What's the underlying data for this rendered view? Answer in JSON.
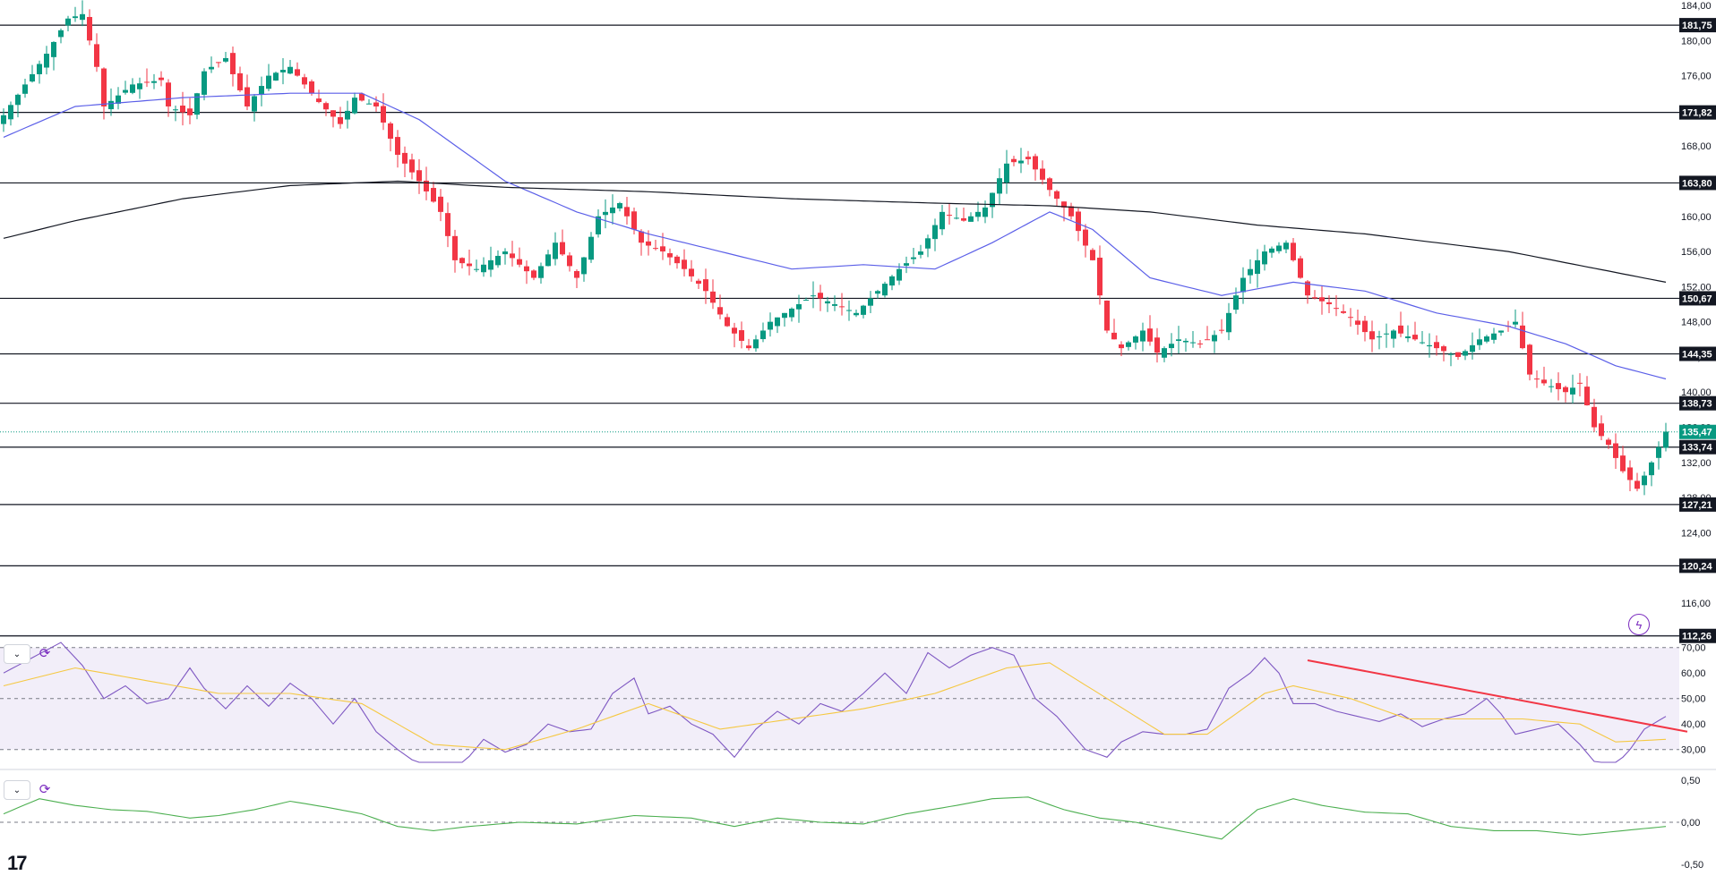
{
  "colors": {
    "up": "#089981",
    "down": "#f23645",
    "ma_fast": "#5b5fe8",
    "ma_slow": "#131722",
    "level": "#131722",
    "current_price": "#089981",
    "rsi": "#7e57c2",
    "rsi_ma": "#f5c842",
    "rsi_band": "#ede7f6",
    "trend": "#f23645",
    "osc": "#4caf50"
  },
  "icons": {
    "collapse": "chevron-down-icon",
    "refresh": "refresh-icon",
    "flash": "lightning-icon",
    "logo": "tradingview-logo"
  },
  "price_axis": {
    "ticks": [
      "184,00",
      "180,00",
      "176,00",
      "172,00",
      "168,00",
      "164,00",
      "160,00",
      "156,00",
      "152,00",
      "148,00",
      "144,00",
      "140,00",
      "136,00",
      "132,00",
      "128,00",
      "124,00",
      "120,00",
      "116,00"
    ]
  },
  "levels": [
    {
      "value": 181.75,
      "label": "181,75"
    },
    {
      "value": 171.82,
      "label": "171,82"
    },
    {
      "value": 163.8,
      "label": "163,80"
    },
    {
      "value": 150.67,
      "label": "150,67"
    },
    {
      "value": 144.35,
      "label": "144,35"
    },
    {
      "value": 138.73,
      "label": "138,73"
    },
    {
      "value": 133.74,
      "label": "133,74"
    },
    {
      "value": 127.21,
      "label": "127,21"
    },
    {
      "value": 120.24,
      "label": "120,24"
    },
    {
      "value": 112.26,
      "label": "112,26"
    }
  ],
  "current_price": {
    "value": 135.47,
    "label": "135,47"
  },
  "rsi_axis": {
    "ticks": [
      "70,00",
      "60,00",
      "50,00",
      "40,00",
      "30,00"
    ]
  },
  "osc_axis": {
    "ticks": [
      "0,50",
      "0,00",
      "-0,50"
    ]
  },
  "chart_data": [
    {
      "type": "candlestick",
      "title": "",
      "ylim": [
        111.5,
        184.0
      ],
      "candles_count": 233,
      "close_anchors": [
        [
          0,
          171.5
        ],
        [
          3,
          175
        ],
        [
          6,
          178.5
        ],
        [
          9,
          182.5
        ],
        [
          11,
          183
        ],
        [
          13,
          177
        ],
        [
          14,
          172.5
        ],
        [
          18,
          175
        ],
        [
          22,
          175.5
        ],
        [
          23,
          172.5
        ],
        [
          26,
          171.5
        ],
        [
          28,
          176.5
        ],
        [
          31,
          178
        ],
        [
          34,
          172.5
        ],
        [
          37,
          176
        ],
        [
          40,
          177
        ],
        [
          44,
          173
        ],
        [
          47,
          170.5
        ],
        [
          49,
          173.5
        ],
        [
          52,
          172.5
        ],
        [
          55,
          167
        ],
        [
          58,
          164
        ],
        [
          61,
          160.5
        ],
        [
          63,
          155
        ],
        [
          66,
          154
        ],
        [
          70,
          156
        ],
        [
          74,
          153
        ],
        [
          77,
          157
        ],
        [
          80,
          153
        ],
        [
          83,
          160
        ],
        [
          86,
          161.5
        ],
        [
          89,
          157
        ],
        [
          92,
          156
        ],
        [
          95,
          154
        ],
        [
          98,
          151.5
        ],
        [
          101,
          147.5
        ],
        [
          104,
          145
        ],
        [
          107,
          148
        ],
        [
          110,
          149.5
        ],
        [
          113,
          151
        ],
        [
          116,
          150
        ],
        [
          119,
          149
        ],
        [
          122,
          151.5
        ],
        [
          125,
          154
        ],
        [
          128,
          156
        ],
        [
          131,
          160.5
        ],
        [
          134,
          159.5
        ],
        [
          137,
          161
        ],
        [
          140,
          166
        ],
        [
          143,
          166.5
        ],
        [
          146,
          163
        ],
        [
          149,
          160
        ],
        [
          152,
          155
        ],
        [
          154,
          147
        ],
        [
          156,
          145
        ],
        [
          159,
          147
        ],
        [
          161,
          144.5
        ],
        [
          164,
          146
        ],
        [
          167,
          145.5
        ],
        [
          170,
          147
        ],
        [
          173,
          153
        ],
        [
          176,
          156
        ],
        [
          179,
          157
        ],
        [
          182,
          151
        ],
        [
          185,
          150
        ],
        [
          188,
          148.5
        ],
        [
          191,
          146
        ],
        [
          194,
          147
        ],
        [
          197,
          146
        ],
        [
          200,
          145
        ],
        [
          203,
          144
        ],
        [
          206,
          146
        ],
        [
          209,
          147
        ],
        [
          211,
          148
        ],
        [
          213,
          142
        ],
        [
          215,
          141
        ],
        [
          218,
          140
        ],
        [
          220,
          141
        ],
        [
          222,
          136
        ],
        [
          224,
          134
        ],
        [
          226,
          131
        ],
        [
          228,
          129
        ],
        [
          230,
          132
        ],
        [
          232,
          135.5
        ]
      ],
      "series": [
        {
          "name": "",
          "kind": "ma_fast",
          "points": [
            [
              0,
              169
            ],
            [
              10,
              172.5
            ],
            [
              25,
              173.5
            ],
            [
              40,
              174
            ],
            [
              50,
              174
            ],
            [
              58,
              171
            ],
            [
              70,
              164
            ],
            [
              80,
              160.5
            ],
            [
              90,
              158
            ],
            [
              100,
              156
            ],
            [
              110,
              154
            ],
            [
              120,
              154.5
            ],
            [
              130,
              154
            ],
            [
              138,
              157
            ],
            [
              146,
              160.5
            ],
            [
              152,
              158.5
            ],
            [
              160,
              153
            ],
            [
              170,
              151
            ],
            [
              180,
              152.5
            ],
            [
              190,
              151.5
            ],
            [
              200,
              149
            ],
            [
              210,
              147.5
            ],
            [
              218,
              145.5
            ],
            [
              225,
              143
            ],
            [
              232,
              141.5
            ]
          ]
        },
        {
          "name": "",
          "kind": "ma_slow",
          "points": [
            [
              0,
              157.5
            ],
            [
              10,
              159.5
            ],
            [
              25,
              162
            ],
            [
              40,
              163.5
            ],
            [
              55,
              164
            ],
            [
              70,
              163.3
            ],
            [
              90,
              162.8
            ],
            [
              110,
              162
            ],
            [
              130,
              161.5
            ],
            [
              146,
              161.2
            ],
            [
              160,
              160.5
            ],
            [
              175,
              159
            ],
            [
              190,
              158
            ],
            [
              210,
              156
            ],
            [
              232,
              152.5
            ]
          ]
        }
      ],
      "xlabel": "",
      "ylabel": ""
    },
    {
      "type": "line",
      "title": "",
      "ylim": [
        25,
        72
      ],
      "reference_lines": [
        70,
        50,
        30
      ],
      "series": [
        {
          "name": "",
          "kind": "rsi",
          "points": [
            [
              0,
              60
            ],
            [
              4,
              66
            ],
            [
              8,
              72
            ],
            [
              11,
              63
            ],
            [
              14,
              50
            ],
            [
              17,
              55
            ],
            [
              20,
              48
            ],
            [
              23,
              50
            ],
            [
              26,
              62
            ],
            [
              28,
              54
            ],
            [
              31,
              46
            ],
            [
              34,
              55
            ],
            [
              37,
              47
            ],
            [
              40,
              56
            ],
            [
              43,
              50
            ],
            [
              46,
              40
            ],
            [
              49,
              50
            ],
            [
              52,
              37
            ],
            [
              55,
              30
            ],
            [
              58,
              24
            ],
            [
              61,
              23
            ],
            [
              64,
              24
            ],
            [
              67,
              34
            ],
            [
              70,
              29
            ],
            [
              73,
              32
            ],
            [
              76,
              40
            ],
            [
              79,
              37
            ],
            [
              82,
              38
            ],
            [
              85,
              52
            ],
            [
              88,
              58
            ],
            [
              90,
              44
            ],
            [
              93,
              47
            ],
            [
              96,
              40
            ],
            [
              99,
              36
            ],
            [
              102,
              27
            ],
            [
              105,
              38
            ],
            [
              108,
              45
            ],
            [
              111,
              40
            ],
            [
              114,
              48
            ],
            [
              117,
              45
            ],
            [
              120,
              52
            ],
            [
              123,
              60
            ],
            [
              126,
              52
            ],
            [
              129,
              68
            ],
            [
              132,
              62
            ],
            [
              135,
              67
            ],
            [
              138,
              70
            ],
            [
              141,
              67
            ],
            [
              144,
              50
            ],
            [
              147,
              43
            ],
            [
              151,
              30
            ],
            [
              154,
              27
            ],
            [
              156,
              33
            ],
            [
              159,
              37
            ],
            [
              162,
              36
            ],
            [
              165,
              36
            ],
            [
              168,
              38
            ],
            [
              171,
              54
            ],
            [
              174,
              60
            ],
            [
              176,
              66
            ],
            [
              178,
              60
            ],
            [
              180,
              48
            ],
            [
              183,
              48
            ],
            [
              186,
              45
            ],
            [
              189,
              43
            ],
            [
              192,
              41
            ],
            [
              195,
              44
            ],
            [
              198,
              39
            ],
            [
              201,
              42
            ],
            [
              204,
              44
            ],
            [
              207,
              50
            ],
            [
              209,
              44
            ],
            [
              211,
              36
            ],
            [
              214,
              38
            ],
            [
              217,
              40
            ],
            [
              220,
              32
            ],
            [
              223,
              22
            ],
            [
              225,
              24
            ],
            [
              227,
              30
            ],
            [
              229,
              38
            ],
            [
              232,
              43
            ]
          ]
        },
        {
          "name": "",
          "kind": "rsi_ma",
          "points": [
            [
              0,
              55
            ],
            [
              10,
              62
            ],
            [
              20,
              57
            ],
            [
              30,
              52
            ],
            [
              40,
              52
            ],
            [
              50,
              48
            ],
            [
              60,
              32
            ],
            [
              70,
              30
            ],
            [
              80,
              38
            ],
            [
              90,
              48
            ],
            [
              100,
              38
            ],
            [
              110,
              42
            ],
            [
              120,
              46
            ],
            [
              130,
              52
            ],
            [
              140,
              62
            ],
            [
              146,
              64
            ],
            [
              154,
              50
            ],
            [
              162,
              36
            ],
            [
              168,
              36
            ],
            [
              176,
              52
            ],
            [
              180,
              55
            ],
            [
              188,
              50
            ],
            [
              196,
              42
            ],
            [
              204,
              42
            ],
            [
              212,
              42
            ],
            [
              220,
              40
            ],
            [
              225,
              33
            ],
            [
              232,
              34
            ]
          ]
        }
      ],
      "trendline": {
        "x1": 182,
        "y1": 65,
        "x2": 235,
        "y2": 37
      },
      "xlabel": "",
      "ylabel": ""
    },
    {
      "type": "line",
      "title": "",
      "ylim": [
        -0.5,
        0.5
      ],
      "reference_lines": [
        0.0
      ],
      "series": [
        {
          "name": "",
          "kind": "osc",
          "points": [
            [
              0,
              0.1
            ],
            [
              5,
              0.28
            ],
            [
              10,
              0.2
            ],
            [
              15,
              0.15
            ],
            [
              20,
              0.13
            ],
            [
              26,
              0.05
            ],
            [
              30,
              0.08
            ],
            [
              35,
              0.15
            ],
            [
              40,
              0.25
            ],
            [
              45,
              0.18
            ],
            [
              50,
              0.1
            ],
            [
              55,
              -0.05
            ],
            [
              60,
              -0.1
            ],
            [
              65,
              -0.05
            ],
            [
              72,
              0.0
            ],
            [
              80,
              -0.02
            ],
            [
              88,
              0.08
            ],
            [
              96,
              0.05
            ],
            [
              102,
              -0.05
            ],
            [
              108,
              0.05
            ],
            [
              114,
              0.0
            ],
            [
              120,
              -0.02
            ],
            [
              126,
              0.1
            ],
            [
              133,
              0.2
            ],
            [
              138,
              0.28
            ],
            [
              143,
              0.3
            ],
            [
              148,
              0.15
            ],
            [
              153,
              0.05
            ],
            [
              158,
              0.0
            ],
            [
              164,
              -0.1
            ],
            [
              170,
              -0.2
            ],
            [
              175,
              0.15
            ],
            [
              180,
              0.28
            ],
            [
              184,
              0.2
            ],
            [
              190,
              0.12
            ],
            [
              196,
              0.1
            ],
            [
              202,
              -0.05
            ],
            [
              208,
              -0.1
            ],
            [
              214,
              -0.1
            ],
            [
              220,
              -0.15
            ],
            [
              226,
              -0.1
            ],
            [
              232,
              -0.05
            ]
          ]
        }
      ],
      "xlabel": "",
      "ylabel": ""
    }
  ]
}
